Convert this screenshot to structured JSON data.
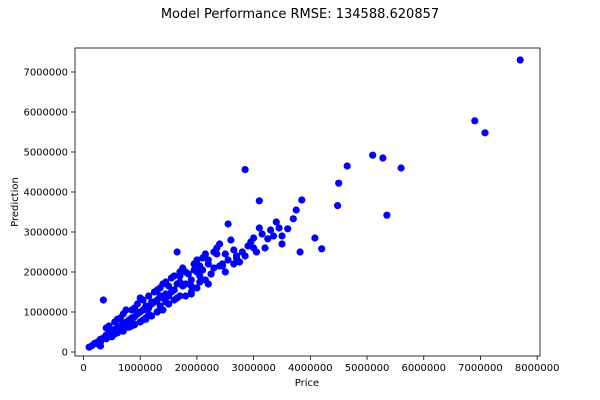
{
  "chart_data": {
    "type": "scatter",
    "title": "Model Performance RMSE: 134588.620857",
    "xlabel": "Price",
    "ylabel": "Prediction",
    "xlim": [
      -150000,
      8050000
    ],
    "ylim": [
      -100000,
      7600000
    ],
    "xticks": [
      0,
      1000000,
      2000000,
      3000000,
      4000000,
      5000000,
      6000000,
      7000000,
      8000000
    ],
    "xtick_labels": [
      "0",
      "1000000",
      "2000000",
      "3000000",
      "4000000",
      "5000000",
      "6000000",
      "7000000",
      "8000000"
    ],
    "yticks": [
      0,
      1000000,
      2000000,
      3000000,
      4000000,
      5000000,
      6000000,
      7000000
    ],
    "ytick_labels": [
      "0",
      "1000000",
      "2000000",
      "3000000",
      "4000000",
      "5000000",
      "6000000",
      "7000000"
    ],
    "grid": false,
    "marker_color": "#0000ff",
    "series": [
      {
        "x": [
          7700000,
          6900000,
          7080000,
          5100000,
          5280000,
          5600000,
          4650000,
          4500000,
          5350000,
          4480000,
          2850000,
          3850000,
          3100000,
          4080000,
          4200000,
          3820000,
          3700000,
          3750000,
          3600000,
          3500000,
          3450000,
          3400000,
          3350000,
          3300000,
          3250000,
          3200000,
          3150000,
          3100000,
          3050000,
          3000000,
          2950000,
          2900000,
          2850000,
          2800000,
          2750000,
          2700000,
          2650000,
          2600000,
          2550000,
          2500000,
          2450000,
          2400000,
          2350000,
          2300000,
          2250000,
          2200000,
          2150000,
          2100000,
          2050000,
          2000000,
          2550000,
          2400000,
          2300000,
          2200000,
          2100000,
          2000000,
          1950000,
          1900000,
          1850000,
          1800000,
          1750000,
          1700000,
          1650000,
          1600000,
          1550000,
          1500000,
          1450000,
          1400000,
          1350000,
          1300000,
          1250000,
          1200000,
          1150000,
          1100000,
          1050000,
          1000000,
          950000,
          900000,
          850000,
          800000,
          750000,
          700000,
          650000,
          600000,
          550000,
          500000,
          450000,
          400000,
          350000,
          300000,
          250000,
          200000,
          150000,
          100000,
          2200000,
          2000000,
          1800000,
          1600000,
          1500000,
          1400000,
          1300000,
          1200000,
          1100000,
          1000000,
          900000,
          800000,
          700000,
          600000,
          500000,
          400000,
          300000,
          1700000,
          1650000,
          1500000,
          1350000,
          1200000,
          1050000,
          900000,
          750000,
          600000,
          450000,
          1900000,
          1750000,
          1600000,
          1450000,
          1300000,
          1150000,
          1000000,
          850000,
          700000,
          550000,
          400000,
          250000,
          2050000,
          1800000,
          1450000,
          1250000,
          1050000,
          850000,
          650000,
          450000,
          350000,
          2650000,
          2500000,
          2350000,
          2150000,
          1950000,
          1700000,
          1550000,
          1350000,
          1150000,
          950000,
          750000,
          550000,
          1900000,
          1700000,
          1500000,
          1300000,
          1100000,
          900000,
          700000,
          500000,
          300000,
          3500000,
          3000000,
          2700000,
          2450000,
          2250000,
          2050000,
          1900000,
          1650000,
          1400000
        ],
        "y": [
          7300000,
          5780000,
          5480000,
          4920000,
          4850000,
          4600000,
          4650000,
          4220000,
          3420000,
          3660000,
          4560000,
          3800000,
          3780000,
          2850000,
          2580000,
          2500000,
          3330000,
          3550000,
          3080000,
          2900000,
          3100000,
          3250000,
          2900000,
          3050000,
          2830000,
          2600000,
          2950000,
          3100000,
          2500000,
          2850000,
          2750000,
          2650000,
          2400000,
          2500000,
          2250000,
          2350000,
          2550000,
          2800000,
          2300000,
          2450000,
          2200000,
          2150000,
          2450000,
          2100000,
          1950000,
          2300000,
          1800000,
          2050000,
          1900000,
          2300000,
          3200000,
          2700000,
          2500000,
          2200000,
          2350000,
          2000000,
          2050000,
          1800000,
          1950000,
          1700000,
          1650000,
          1750000,
          1700000,
          1550000,
          1500000,
          1400000,
          1450000,
          1350000,
          1400000,
          1300000,
          1250000,
          1200000,
          1100000,
          1150000,
          1050000,
          1000000,
          950000,
          880000,
          850000,
          800000,
          740000,
          720000,
          650000,
          600000,
          560000,
          500000,
          450000,
          420000,
          350000,
          320000,
          250000,
          220000,
          160000,
          120000,
          1700000,
          1600000,
          1400000,
          1300000,
          1200000,
          1050000,
          1000000,
          900000,
          850000,
          750000,
          700000,
          620000,
          560000,
          480000,
          400000,
          330000,
          250000,
          1900000,
          1350000,
          1650000,
          1150000,
          1250000,
          800000,
          1100000,
          620000,
          820000,
          380000,
          1650000,
          2100000,
          1900000,
          1250000,
          1550000,
          950000,
          1350000,
          650000,
          950000,
          450000,
          600000,
          200000,
          2150000,
          2000000,
          1750000,
          1500000,
          1300000,
          1050000,
          850000,
          650000,
          1300000,
          2200000,
          2000000,
          2600000,
          2450000,
          2200000,
          2000000,
          1850000,
          1600000,
          1400000,
          1200000,
          1050000,
          750000,
          1450000,
          1400000,
          1200000,
          1000000,
          820000,
          680000,
          520000,
          380000,
          150000,
          2700000,
          2600000,
          2400000,
          2150000,
          1950000,
          1750000,
          1500000,
          2500000,
          1700000
        ]
      }
    ]
  }
}
